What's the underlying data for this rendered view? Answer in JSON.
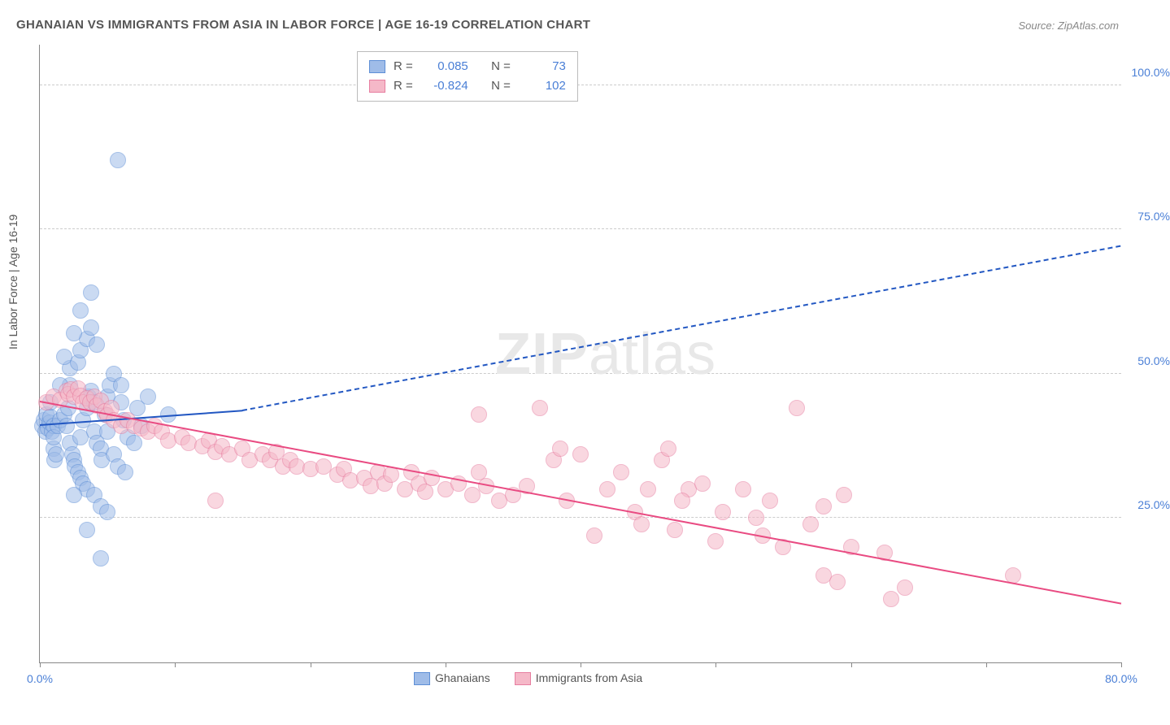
{
  "title": "GHANAIAN VS IMMIGRANTS FROM ASIA IN LABOR FORCE | AGE 16-19 CORRELATION CHART",
  "source": "Source: ZipAtlas.com",
  "ylabel": "In Labor Force | Age 16-19",
  "watermark_a": "ZIP",
  "watermark_b": "atlas",
  "chart": {
    "type": "scatter",
    "xlim": [
      0,
      80
    ],
    "ylim": [
      0,
      107
    ],
    "xticks": [
      0,
      10,
      20,
      30,
      40,
      50,
      60,
      70,
      80
    ],
    "xtick_labels": {
      "0": "0.0%",
      "80": "80.0%"
    },
    "yticks": [
      25,
      50,
      75,
      100
    ],
    "ytick_labels": [
      "25.0%",
      "50.0%",
      "75.0%",
      "100.0%"
    ],
    "grid_color": "#cccccc",
    "background": "#ffffff",
    "marker_radius": 9,
    "marker_opacity": 0.55,
    "series": [
      {
        "name": "Ghanaians",
        "fill": "#9fbce8",
        "stroke": "#5e8fd6",
        "R": "0.085",
        "N": "73",
        "trend": {
          "color": "#2257c2",
          "width": 2.5,
          "x1": 0,
          "y1": 41,
          "x2": 15,
          "y2": 43.5,
          "dash_from_x": 15,
          "x3": 80,
          "y3": 72
        },
        "points": [
          [
            0.2,
            41
          ],
          [
            0.3,
            42
          ],
          [
            0.4,
            40
          ],
          [
            0.5,
            43
          ],
          [
            0.6,
            40.5
          ],
          [
            0.7,
            41.5
          ],
          [
            0.8,
            42.5
          ],
          [
            0.9,
            40
          ],
          [
            1.0,
            41
          ],
          [
            1.0,
            37
          ],
          [
            1.1,
            35
          ],
          [
            1.2,
            36
          ],
          [
            1.0,
            39
          ],
          [
            1.3,
            41
          ],
          [
            1.5,
            42
          ],
          [
            1.8,
            43
          ],
          [
            2.0,
            41
          ],
          [
            2.1,
            44
          ],
          [
            2.2,
            38
          ],
          [
            2.4,
            36
          ],
          [
            2.5,
            35
          ],
          [
            2.6,
            34
          ],
          [
            2.8,
            33
          ],
          [
            3.0,
            32
          ],
          [
            3.2,
            31
          ],
          [
            3.0,
            39
          ],
          [
            3.2,
            42
          ],
          [
            3.5,
            44
          ],
          [
            3.6,
            46
          ],
          [
            3.8,
            47
          ],
          [
            4.0,
            45
          ],
          [
            4.0,
            40
          ],
          [
            4.2,
            38
          ],
          [
            4.5,
            37
          ],
          [
            4.6,
            35
          ],
          [
            4.8,
            43
          ],
          [
            5.0,
            46
          ],
          [
            5.2,
            48
          ],
          [
            5.5,
            50
          ],
          [
            5.0,
            40
          ],
          [
            5.5,
            36
          ],
          [
            5.8,
            34
          ],
          [
            6.0,
            45
          ],
          [
            6.2,
            42
          ],
          [
            6.5,
            39
          ],
          [
            3.5,
            30
          ],
          [
            4.0,
            29
          ],
          [
            4.5,
            27
          ],
          [
            5.0,
            26
          ],
          [
            3.5,
            23
          ],
          [
            4.5,
            18
          ],
          [
            2.5,
            29
          ],
          [
            6.3,
            33
          ],
          [
            7.0,
            38
          ],
          [
            7.2,
            44
          ],
          [
            7.5,
            41
          ],
          [
            8.0,
            46
          ],
          [
            2.2,
            51
          ],
          [
            2.8,
            52
          ],
          [
            3.0,
            54
          ],
          [
            3.5,
            56
          ],
          [
            3.8,
            58
          ],
          [
            4.2,
            55
          ],
          [
            2.5,
            57
          ],
          [
            1.8,
            53
          ],
          [
            3.0,
            61
          ],
          [
            3.8,
            64
          ],
          [
            2.2,
            48
          ],
          [
            1.5,
            48
          ],
          [
            0.8,
            45
          ],
          [
            6.0,
            48
          ],
          [
            5.8,
            87
          ],
          [
            9.5,
            43
          ]
        ]
      },
      {
        "name": "Immigrants from Asia",
        "fill": "#f5b8c8",
        "stroke": "#e77ea0",
        "R": "-0.824",
        "N": "102",
        "trend": {
          "color": "#e94b82",
          "width": 2.5,
          "x1": 0,
          "y1": 45,
          "x2": 80,
          "y2": 10
        },
        "points": [
          [
            0.5,
            45
          ],
          [
            1.0,
            46
          ],
          [
            1.5,
            45.5
          ],
          [
            2.0,
            47
          ],
          [
            2.1,
            46.5
          ],
          [
            2.3,
            47.3
          ],
          [
            2.5,
            46
          ],
          [
            2.8,
            47.5
          ],
          [
            3.0,
            46.2
          ],
          [
            3.2,
            45
          ],
          [
            3.5,
            45.8
          ],
          [
            3.7,
            45
          ],
          [
            4.0,
            46
          ],
          [
            4.2,
            44.5
          ],
          [
            4.5,
            45.3
          ],
          [
            4.8,
            43.5
          ],
          [
            5.0,
            42.8
          ],
          [
            5.3,
            44
          ],
          [
            5.5,
            42
          ],
          [
            6.0,
            41
          ],
          [
            6.5,
            42
          ],
          [
            7.0,
            41
          ],
          [
            7.5,
            40.5
          ],
          [
            8.0,
            40
          ],
          [
            8.5,
            41
          ],
          [
            9.0,
            40
          ],
          [
            9.5,
            38.5
          ],
          [
            10.5,
            39
          ],
          [
            11.0,
            38
          ],
          [
            12.0,
            37.5
          ],
          [
            12.5,
            38.5
          ],
          [
            13.0,
            36.5
          ],
          [
            13.5,
            37.5
          ],
          [
            14.0,
            36
          ],
          [
            15.0,
            37
          ],
          [
            15.5,
            35
          ],
          [
            16.5,
            36
          ],
          [
            17.0,
            35
          ],
          [
            17.5,
            36.5
          ],
          [
            18.0,
            34
          ],
          [
            18.5,
            35
          ],
          [
            19.0,
            34
          ],
          [
            20.0,
            33.5
          ],
          [
            21.0,
            34
          ],
          [
            22.0,
            32.5
          ],
          [
            22.5,
            33.5
          ],
          [
            23.0,
            31.5
          ],
          [
            24.0,
            32
          ],
          [
            24.5,
            30.5
          ],
          [
            25.0,
            33
          ],
          [
            25.5,
            31
          ],
          [
            26.0,
            32.5
          ],
          [
            27.0,
            30
          ],
          [
            27.5,
            33
          ],
          [
            28.0,
            31
          ],
          [
            28.5,
            29.5
          ],
          [
            29.0,
            32
          ],
          [
            30.0,
            30
          ],
          [
            31.0,
            31
          ],
          [
            32.0,
            29
          ],
          [
            32.5,
            33
          ],
          [
            33.0,
            30.5
          ],
          [
            34.0,
            28
          ],
          [
            35.0,
            29
          ],
          [
            36.0,
            30.5
          ],
          [
            37.0,
            44
          ],
          [
            38.0,
            35
          ],
          [
            38.5,
            37
          ],
          [
            39.0,
            28
          ],
          [
            32.5,
            43
          ],
          [
            40.0,
            36
          ],
          [
            41.0,
            22
          ],
          [
            42.0,
            30
          ],
          [
            43.0,
            33
          ],
          [
            44.0,
            26
          ],
          [
            44.5,
            24
          ],
          [
            45.0,
            30
          ],
          [
            46.0,
            35
          ],
          [
            46.5,
            37
          ],
          [
            47.0,
            23
          ],
          [
            48.0,
            30
          ],
          [
            49.0,
            31
          ],
          [
            50.0,
            21
          ],
          [
            50.5,
            26
          ],
          [
            52.0,
            30
          ],
          [
            53.0,
            25
          ],
          [
            53.5,
            22
          ],
          [
            54.0,
            28
          ],
          [
            55.0,
            20
          ],
          [
            56.0,
            44
          ],
          [
            57.0,
            24
          ],
          [
            58.0,
            15
          ],
          [
            59.0,
            14
          ],
          [
            60.0,
            20
          ],
          [
            62.5,
            19
          ],
          [
            63.0,
            11
          ],
          [
            64.0,
            13
          ],
          [
            58.0,
            27
          ],
          [
            59.5,
            29
          ],
          [
            47.5,
            28
          ],
          [
            72.0,
            15
          ],
          [
            13.0,
            28
          ]
        ]
      }
    ]
  },
  "bottom_legend": [
    {
      "label": "Ghanaians",
      "fill": "#9fbce8",
      "stroke": "#5e8fd6"
    },
    {
      "label": "Immigrants from Asia",
      "fill": "#f5b8c8",
      "stroke": "#e77ea0"
    }
  ]
}
